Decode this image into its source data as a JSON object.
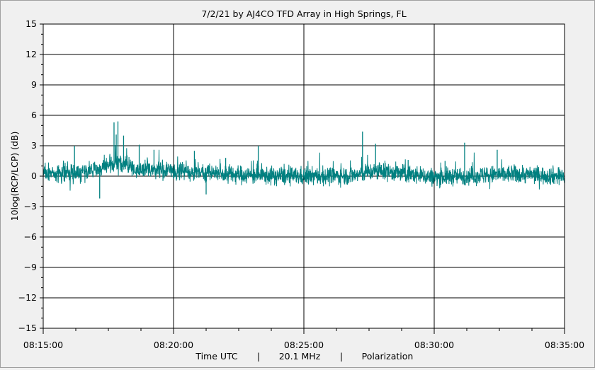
{
  "chart_data": {
    "type": "line",
    "title": "7/2/21  by  AJ4CO TFD Array  in  High Springs, FL",
    "ylabel": "10log(RCP/LCP) (dB)",
    "xlabel_parts": [
      "Time UTC",
      "|",
      "20.1 MHz",
      "|",
      "Polarization"
    ],
    "ylim": [
      -15,
      15
    ],
    "yticks": [
      15,
      12,
      9,
      6,
      3,
      0,
      -3,
      -6,
      -9,
      -12,
      -15
    ],
    "xlim": [
      "08:15:00",
      "08:35:00"
    ],
    "xtick_labels": [
      "08:15:00",
      "08:20:00",
      "08:25:00",
      "08:30:00",
      "08:35:00"
    ],
    "grid": true,
    "series_color": "#008080",
    "series": [
      {
        "x": [
          "08:15:00",
          "08:16:00",
          "08:17:00",
          "08:17:30",
          "08:18:00",
          "08:18:30",
          "08:19:00",
          "08:19:30",
          "08:20:00",
          "08:21:00",
          "08:22:00",
          "08:23:00",
          "08:24:00",
          "08:25:00",
          "08:26:00",
          "08:27:00",
          "08:27:30",
          "08:28:00",
          "08:29:00",
          "08:30:00",
          "08:31:00",
          "08:32:00",
          "08:33:00",
          "08:34:00",
          "08:35:00"
        ],
        "values": [
          0.2,
          0.3,
          0.6,
          1.0,
          1.4,
          0.6,
          0.7,
          0.6,
          0.4,
          0.5,
          0.2,
          0.1,
          0.0,
          0.0,
          0.0,
          0.1,
          0.4,
          0.5,
          0.2,
          -0.1,
          0.0,
          0.1,
          0.2,
          0.1,
          0.0
        ],
        "spikes": [
          {
            "x": "08:16:12",
            "y": 3.0
          },
          {
            "x": "08:17:43",
            "y": 5.3
          },
          {
            "x": "08:17:48",
            "y": 4.1
          },
          {
            "x": "08:17:52",
            "y": 5.4
          },
          {
            "x": "08:18:05",
            "y": 4.0
          },
          {
            "x": "08:18:41",
            "y": 3.1
          },
          {
            "x": "08:19:15",
            "y": 2.6
          },
          {
            "x": "08:20:48",
            "y": 2.5
          },
          {
            "x": "08:22:00",
            "y": 1.8
          },
          {
            "x": "08:23:15",
            "y": 3.0
          },
          {
            "x": "08:27:15",
            "y": 4.4
          },
          {
            "x": "08:27:45",
            "y": 3.2
          },
          {
            "x": "08:29:00",
            "y": 1.6
          },
          {
            "x": "08:30:25",
            "y": 1.5
          },
          {
            "x": "08:31:10",
            "y": 3.3
          },
          {
            "x": "08:32:25",
            "y": 2.6
          },
          {
            "x": "08:17:10",
            "y": -2.2
          },
          {
            "x": "08:21:15",
            "y": -1.8
          }
        ]
      }
    ]
  }
}
